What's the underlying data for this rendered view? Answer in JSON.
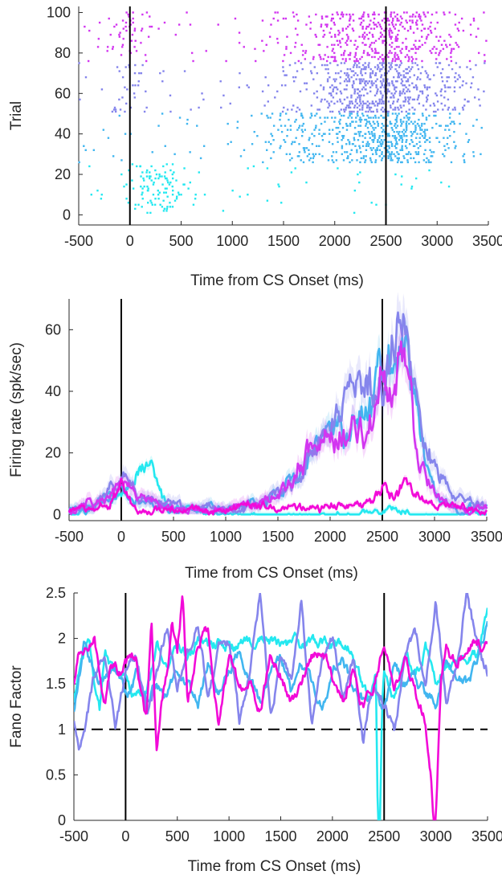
{
  "chart_data": [
    {
      "type": "scatter",
      "kind": "raster",
      "xlabel": "Time from CS Onset (ms)",
      "ylabel": "Trial",
      "xlim": [
        -500,
        3500
      ],
      "ylim": [
        -5,
        103
      ],
      "xticks": [
        -500,
        0,
        500,
        1000,
        1500,
        2000,
        2500,
        3000,
        3500
      ],
      "xtick_labels": [
        "-500",
        "0",
        "500",
        "1000",
        "1500",
        "2000",
        "2500",
        "3000",
        "3500"
      ],
      "yticks": [
        0,
        20,
        40,
        60,
        80,
        100
      ],
      "ytick_labels": [
        "0",
        "20",
        "40",
        "60",
        "80",
        "100"
      ],
      "event_lines_x": [
        0,
        2500
      ],
      "grid": false,
      "series": [
        {
          "color": "#24e8f0",
          "trials": [
            1,
            25
          ],
          "bursts": [
            {
              "t": 250,
              "w": 160,
              "rate": 0.55
            }
          ]
        },
        {
          "color": "#41b6f0",
          "trials": [
            26,
            50
          ],
          "bursts": [
            {
              "t": 2500,
              "w": 350,
              "rate": 1.1
            },
            {
              "t": 1600,
              "w": 220,
              "rate": 0.35
            }
          ]
        },
        {
          "color": "#8585ec",
          "trials": [
            51,
            75
          ],
          "bursts": [
            {
              "t": 2450,
              "w": 420,
              "rate": 1.05
            },
            {
              "t": 0,
              "w": 120,
              "rate": 0.2
            }
          ]
        },
        {
          "color": "#d236f0",
          "trials": [
            76,
            100
          ],
          "bursts": [
            {
              "t": 2450,
              "w": 450,
              "rate": 0.8
            },
            {
              "t": 0,
              "w": 120,
              "rate": 0.3
            }
          ]
        }
      ],
      "baseline_rate": 0.06
    },
    {
      "type": "line",
      "xlabel": "Time from CS Onset (ms)",
      "ylabel": "Firing rate (spk/sec)",
      "xlim": [
        -500,
        3500
      ],
      "ylim": [
        -2,
        70
      ],
      "xticks": [
        -500,
        0,
        500,
        1000,
        1500,
        2000,
        2500,
        3000,
        3500
      ],
      "xtick_labels": [
        "-500",
        "0",
        "500",
        "1000",
        "1500",
        "2000",
        "2500",
        "3000",
        "3500"
      ],
      "yticks": [
        0,
        20,
        40,
        60
      ],
      "ytick_labels": [
        "0",
        "20",
        "40",
        "60"
      ],
      "event_lines_x": [
        0,
        2500
      ],
      "grid": false,
      "series": [
        {
          "color": "#24e8f0",
          "x": [
            -500,
            -300,
            -150,
            0,
            100,
            200,
            300,
            400,
            500,
            700,
            1000,
            1500,
            2000,
            2300,
            2500,
            2600,
            2700,
            3000,
            3500
          ],
          "y": [
            1,
            3,
            5,
            7,
            12,
            15,
            12,
            5,
            2,
            1,
            0,
            0,
            0,
            0,
            1,
            2,
            1,
            0,
            0
          ],
          "sem": 1.5
        },
        {
          "color": "#41b6f0",
          "x": [
            -500,
            -200,
            0,
            100,
            200,
            400,
            700,
            1000,
            1200,
            1500,
            1700,
            1900,
            2100,
            2300,
            2400,
            2500,
            2600,
            2700,
            2800,
            2900,
            3000,
            3200,
            3500
          ],
          "y": [
            1,
            3,
            8,
            6,
            3,
            2,
            1,
            1,
            3,
            8,
            13,
            20,
            28,
            37,
            42,
            46,
            52,
            56,
            40,
            20,
            8,
            3,
            2
          ],
          "sem": 2.5
        },
        {
          "color": "#8585ec",
          "x": [
            -500,
            -200,
            0,
            100,
            200,
            400,
            700,
            1000,
            1200,
            1500,
            1700,
            1900,
            2100,
            2200,
            2350,
            2450,
            2500,
            2600,
            2700,
            2800,
            2900,
            3000,
            3200,
            3500
          ],
          "y": [
            1,
            4,
            11,
            9,
            5,
            3,
            2,
            1,
            2,
            6,
            12,
            21,
            30,
            40,
            50,
            47,
            45,
            55,
            57,
            40,
            25,
            15,
            5,
            3
          ],
          "sem": 3
        },
        {
          "color": "#d236f0",
          "x": [
            -500,
            -200,
            0,
            100,
            200,
            400,
            700,
            1000,
            1200,
            1500,
            1700,
            1900,
            2100,
            2300,
            2400,
            2500,
            2600,
            2700,
            2800,
            2900,
            3000,
            3200,
            3500
          ],
          "y": [
            1,
            4,
            8,
            7,
            4,
            2,
            1,
            1,
            2,
            8,
            16,
            22,
            28,
            31,
            33,
            45,
            43,
            54,
            30,
            15,
            6,
            3,
            2
          ],
          "sem": 3
        },
        {
          "color": "#f20ad8",
          "x": [
            -500,
            -300,
            -100,
            0,
            100,
            200,
            400,
            600,
            900,
            1200,
            1500,
            1800,
            2100,
            2300,
            2450,
            2500,
            2600,
            2700,
            2800,
            3000,
            3200,
            3500
          ],
          "y": [
            1,
            2,
            5,
            10,
            4,
            1,
            3,
            2,
            1,
            2,
            3,
            2,
            3,
            2,
            7,
            9,
            6,
            10,
            6,
            2,
            3,
            1
          ],
          "sem": 1.2
        }
      ]
    },
    {
      "type": "line",
      "xlabel": "Time from CS Onset (ms)",
      "ylabel": "Fano Factor",
      "xlim": [
        -500,
        3500
      ],
      "ylim": [
        0,
        2.5
      ],
      "xticks": [
        -500,
        0,
        500,
        1000,
        1500,
        2000,
        2500,
        3000,
        3500
      ],
      "xtick_labels": [
        "-500",
        "0",
        "500",
        "1000",
        "1500",
        "2000",
        "2500",
        "3000",
        "3500"
      ],
      "yticks": [
        0,
        0.5,
        1,
        1.5,
        2,
        2.5
      ],
      "ytick_labels": [
        "0",
        "0.5",
        "1",
        "1.5",
        "2",
        "2.5"
      ],
      "event_lines_x": [
        0,
        2500
      ],
      "reference_line_y": 1,
      "grid": false,
      "series": [
        {
          "color": "#24e8f0",
          "x": [
            -500,
            -420,
            -350,
            -300,
            -250,
            -200,
            -100,
            0,
            100,
            200,
            300,
            400,
            500,
            600,
            700,
            800,
            900,
            1000,
            1200,
            1500,
            1800,
            2000,
            2150,
            2250,
            2350,
            2420,
            2440,
            2460,
            2480,
            2500,
            2600,
            2700,
            2800,
            2900,
            3000,
            3200,
            3400,
            3500
          ],
          "y": [
            1.3,
            1.85,
            1.9,
            1.5,
            1.2,
            1.8,
            1.6,
            1.5,
            1.3,
            1.45,
            1.9,
            1.7,
            1.9,
            1.8,
            1.95,
            1.9,
            1.95,
            1.9,
            1.95,
            1.95,
            1.95,
            1.95,
            1.9,
            1.6,
            1.3,
            1.6,
            0,
            0,
            1.3,
            1.7,
            1.3,
            1.85,
            1.6,
            1.9,
            1.55,
            1.8,
            1.8,
            2.3
          ],
          "seed": 3
        },
        {
          "color": "#41b6f0",
          "x": [
            -500,
            -400,
            -300,
            -200,
            -100,
            0,
            100,
            200,
            300,
            400,
            500,
            600,
            700,
            800,
            900,
            1000,
            1100,
            1200,
            1300,
            1400,
            1500,
            1600,
            1700,
            1800,
            1900,
            2000,
            2100,
            2200,
            2300,
            2400,
            2500,
            2600,
            2700,
            2800,
            2900,
            3000,
            3100,
            3200,
            3300,
            3400,
            3500
          ],
          "y": [
            1.2,
            1.9,
            1.6,
            1.5,
            1.7,
            1.4,
            1.6,
            1.3,
            1.5,
            1.4,
            1.6,
            1.5,
            1.3,
            1.7,
            1.4,
            1.6,
            1.9,
            1.5,
            1.3,
            1.6,
            1.8,
            1.4,
            1.7,
            1.5,
            1.2,
            1.6,
            1.8,
            1.4,
            1.3,
            1.5,
            1.2,
            1.7,
            1.5,
            1.6,
            1.4,
            1.3,
            1.8,
            1.6,
            1.5,
            1.7,
            2.2
          ],
          "seed": 7
        },
        {
          "color": "#8585ec",
          "x": [
            -500,
            -450,
            -400,
            -300,
            -200,
            -100,
            0,
            100,
            200,
            300,
            400,
            500,
            600,
            700,
            800,
            900,
            1000,
            1100,
            1200,
            1300,
            1400,
            1500,
            1600,
            1700,
            1800,
            1900,
            2000,
            2100,
            2200,
            2300,
            2400,
            2500,
            2600,
            2700,
            2800,
            2900,
            3000,
            3100,
            3200,
            3300,
            3400,
            3500
          ],
          "y": [
            1.1,
            0.7,
            0.9,
            1.6,
            1.9,
            1.0,
            1.6,
            1.8,
            1.2,
            1.6,
            2.1,
            1.5,
            1.8,
            2.2,
            1.3,
            1.9,
            2.0,
            1.1,
            1.7,
            2.5,
            1.2,
            1.8,
            1.5,
            2.4,
            1.0,
            1.7,
            2.0,
            1.3,
            1.8,
            0.9,
            1.5,
            1.3,
            1.0,
            1.8,
            2.1,
            1.5,
            2.4,
            1.3,
            1.7,
            2.5,
            1.9,
            1.6
          ],
          "seed": 11
        },
        {
          "color": "#f20ad8",
          "x": [
            -500,
            -450,
            -380,
            -300,
            -250,
            -200,
            -150,
            -100,
            -50,
            0,
            100,
            200,
            250,
            300,
            350,
            400,
            450,
            500,
            550,
            600,
            700,
            800,
            900,
            1000,
            1100,
            1200,
            1300,
            1400,
            1500,
            1600,
            1700,
            1800,
            1900,
            2000,
            2100,
            2200,
            2300,
            2400,
            2500,
            2600,
            2700,
            2800,
            2900,
            2950,
            2980,
            3000,
            3050,
            3100,
            3200,
            3300,
            3400,
            3500
          ],
          "y": [
            1.5,
            1.9,
            1.9,
            2.0,
            1.6,
            1.3,
            1.7,
            1.7,
            1.6,
            1.7,
            1.8,
            1.1,
            2.25,
            0.75,
            1.3,
            1.6,
            2.2,
            1.9,
            2.5,
            1.3,
            1.9,
            2.1,
            1.0,
            1.8,
            1.4,
            1.6,
            1.2,
            1.8,
            1.6,
            1.3,
            1.5,
            1.8,
            1.9,
            1.6,
            1.3,
            1.7,
            1.2,
            1.5,
            1.9,
            1.4,
            1.8,
            1.4,
            1.1,
            0.6,
            0,
            0,
            1.6,
            1.9,
            1.7,
            1.9,
            1.95,
            1.9
          ],
          "seed": 19
        }
      ]
    }
  ]
}
